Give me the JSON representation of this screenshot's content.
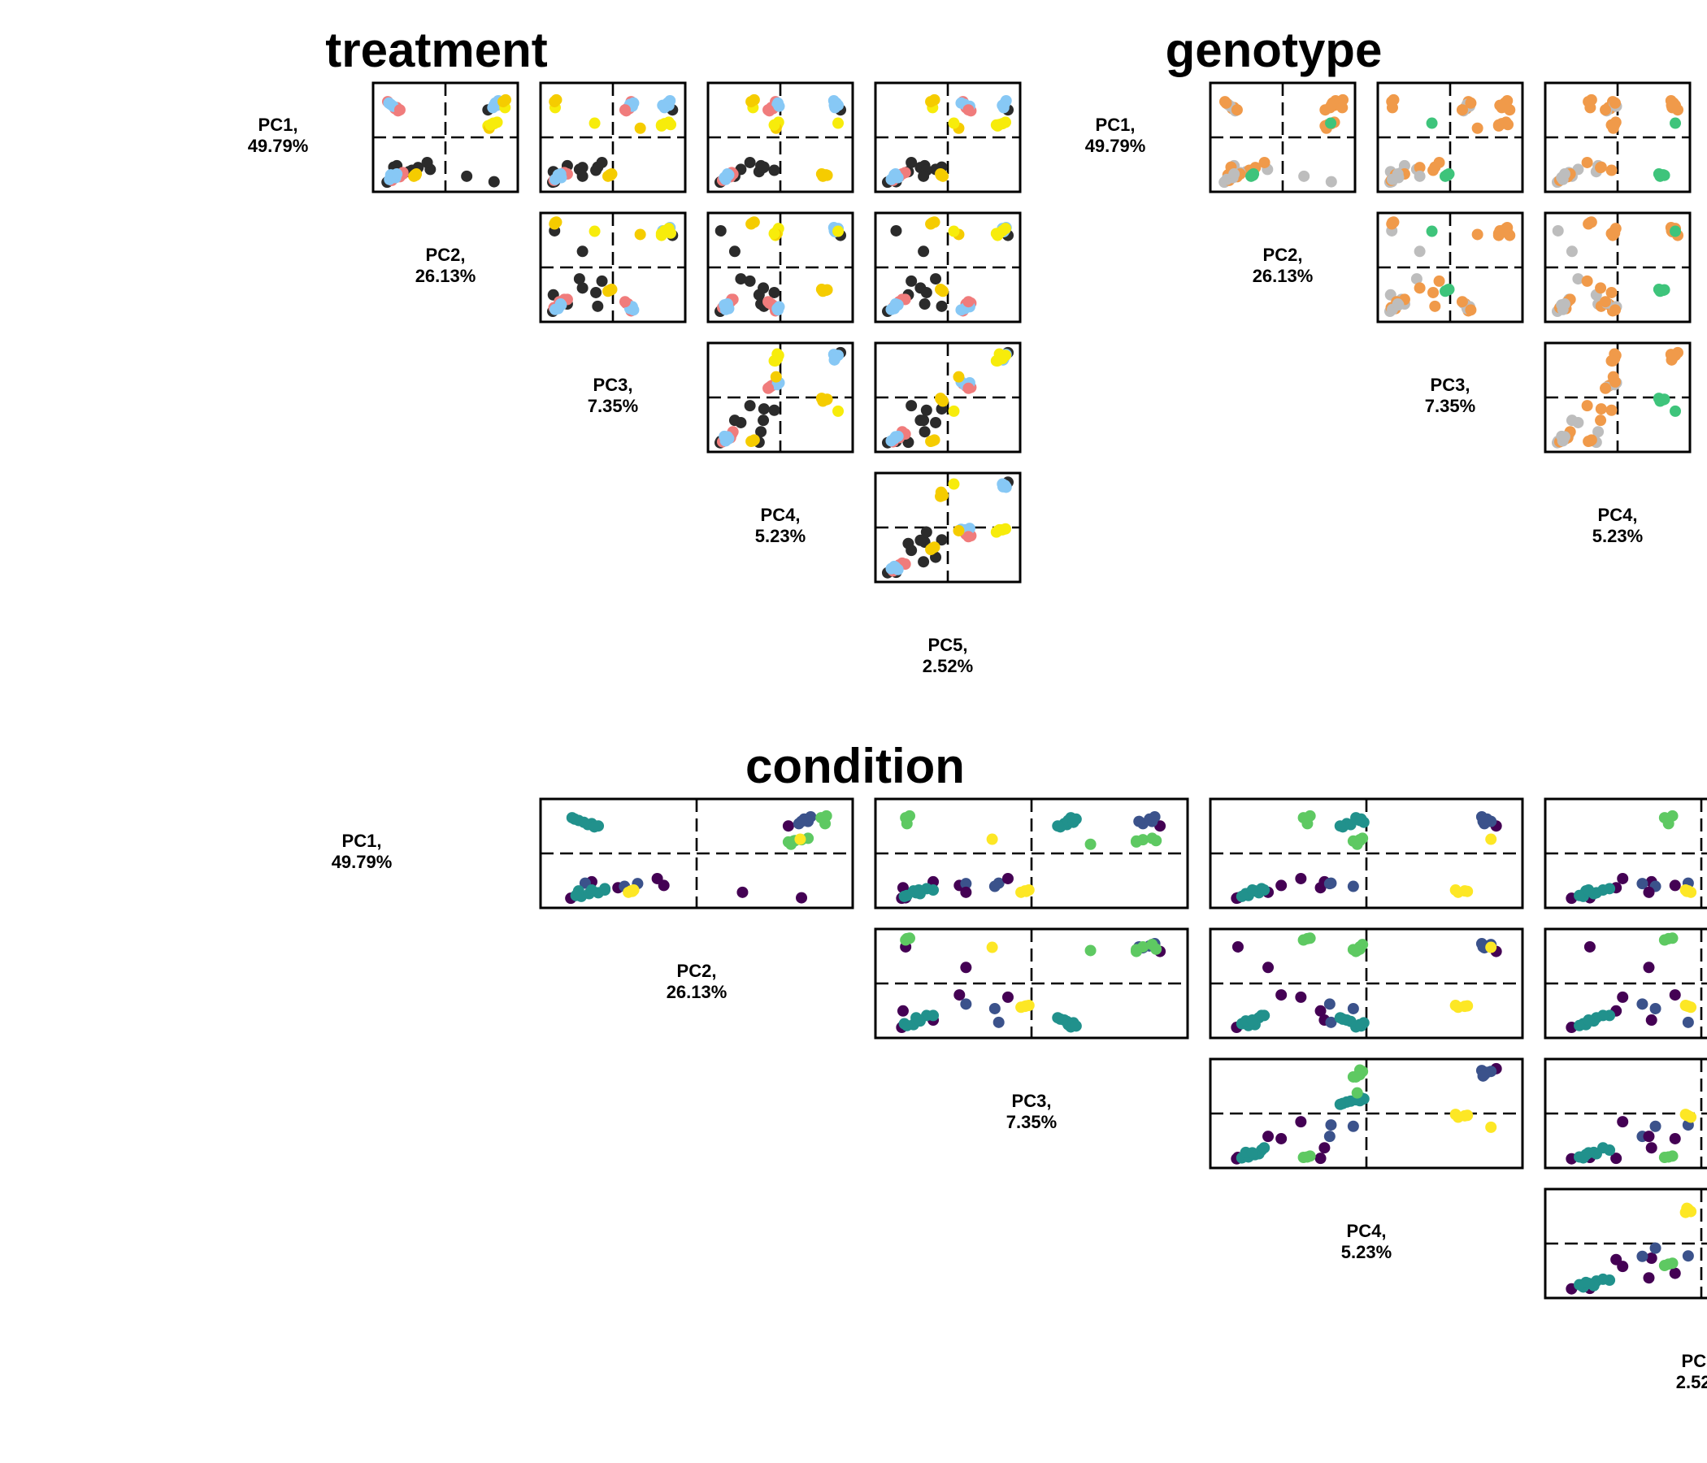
{
  "chart_data": {
    "type": "scatter",
    "pc_labels": [
      {
        "name": "PC1,",
        "variance": "49.79%"
      },
      {
        "name": "PC2,",
        "variance": "26.13%"
      },
      {
        "name": "PC3,",
        "variance": "7.35%"
      },
      {
        "name": "PC4,",
        "variance": "5.23%"
      },
      {
        "name": "PC5,",
        "variance": "2.52%"
      }
    ],
    "origin": [
      0,
      0
    ],
    "axis_ranges": [
      [
        -10,
        10
      ],
      [
        -10,
        10
      ],
      [
        -10,
        10
      ],
      [
        -10,
        10
      ],
      [
        -10,
        10
      ]
    ],
    "axis_ticks": "none",
    "grid": false,
    "panels": [
      {
        "title": "treatment",
        "color_map": "treatment"
      },
      {
        "title": "genotype",
        "color_map": "genotype"
      },
      {
        "title": "condition",
        "color_map": "condition"
      }
    ],
    "color_maps": {
      "treatment": [
        "#2b2b2b",
        "#f07c7c",
        "#87c8f5",
        "#f5cc00",
        "#f7ec0b"
      ],
      "genotype": [
        "#bdbdbd",
        "#f09a4a",
        "#f09a4a",
        "#3ec47b",
        "#f09a4a"
      ],
      "condition": [
        "#440154",
        "#3b528b",
        "#21918c",
        "#5ec962",
        "#fde725"
      ]
    },
    "samples": [
      {
        "pcs": [
          -7.5,
          -6.0,
          -9.8,
          -3.5,
          -6.5
        ],
        "treatment": 0,
        "genotype": 0,
        "condition": 0
      },
      {
        "pcs": [
          -6.2,
          -8.0,
          -7.5,
          -3.2,
          -3.8
        ],
        "treatment": 0,
        "genotype": 0,
        "condition": 0
      },
      {
        "pcs": [
          -7.0,
          -2.5,
          -5.5,
          -6.5,
          -2.0
        ],
        "treatment": 0,
        "genotype": 0,
        "condition": 0
      },
      {
        "pcs": [
          -9.8,
          -9.6,
          -9.9,
          -9.9,
          -9.9
        ],
        "treatment": 0,
        "genotype": 0,
        "condition": 0
      },
      {
        "pcs": [
          -6.6,
          -4.5,
          -5.0,
          -2.8,
          -4.5
        ],
        "treatment": 0,
        "genotype": 1,
        "condition": 1
      },
      {
        "pcs": [
          -6.5,
          -8.5,
          -2.5,
          -2.7,
          -1.0
        ],
        "treatment": 0,
        "genotype": 2,
        "condition": 1
      },
      {
        "pcs": [
          -7.2,
          -5.5,
          -2.8,
          -1.0,
          -3.5
        ],
        "treatment": 0,
        "genotype": 4,
        "condition": 1
      },
      {
        "pcs": [
          -5.5,
          -3.0,
          -1.8,
          -5.0,
          -6.0
        ],
        "treatment": 0,
        "genotype": 1,
        "condition": 0
      },
      {
        "pcs": [
          6.0,
          7.0,
          9.8,
          9.9,
          9.9
        ],
        "treatment": 0,
        "genotype": 4,
        "condition": 0
      },
      {
        "pcs": [
          -8.5,
          3.5,
          -5.0,
          -7.5,
          -4.0
        ],
        "treatment": 0,
        "genotype": 0,
        "condition": 0
      },
      {
        "pcs": [
          -9.7,
          8.0,
          -9.6,
          -9.8,
          -8.5
        ],
        "treatment": 0,
        "genotype": 0,
        "condition": 0
      },
      {
        "pcs": [
          -7.7,
          -7.0,
          -8.0,
          -8.0,
          -7.0
        ],
        "treatment": 1,
        "genotype": 0,
        "condition": 2
      },
      {
        "pcs": [
          -8.6,
          -7.5,
          -8.8,
          -8.2,
          -8.0
        ],
        "treatment": 1,
        "genotype": 1,
        "condition": 2
      },
      {
        "pcs": [
          -9.4,
          -8.8,
          -9.7,
          -9.5,
          -9.0
        ],
        "treatment": 1,
        "genotype": 1,
        "condition": 2
      },
      {
        "pcs": [
          -8.0,
          -7.0,
          -7.5,
          -7.8,
          -7.5
        ],
        "treatment": 1,
        "genotype": 1,
        "condition": 2
      },
      {
        "pcs": [
          -8.2,
          -9.0,
          -9.0,
          -8.5,
          -8.8
        ],
        "treatment": 2,
        "genotype": 1,
        "condition": 2
      },
      {
        "pcs": [
          -9.2,
          -9.2,
          -9.5,
          -9.0,
          -9.3
        ],
        "treatment": 2,
        "genotype": 0,
        "condition": 2
      },
      {
        "pcs": [
          -8.8,
          -8.2,
          -8.5,
          -9.2,
          -8.2
        ],
        "treatment": 2,
        "genotype": 0,
        "condition": 2
      },
      {
        "pcs": [
          7.0,
          8.5,
          9.2,
          9.5,
          9.0
        ],
        "treatment": 2,
        "genotype": 1,
        "condition": 1
      },
      {
        "pcs": [
          7.5,
          8.2,
          9.0,
          9.2,
          9.4
        ],
        "treatment": 2,
        "genotype": 1,
        "condition": 1
      },
      {
        "pcs": [
          8.0,
          8.7,
          9.4,
          8.8,
          9.6
        ],
        "treatment": 2,
        "genotype": 1,
        "condition": 1
      },
      {
        "pcs": [
          -8.0,
          -8.0,
          -8.6,
          -8.7,
          -8.6
        ],
        "treatment": 2,
        "genotype": 0,
        "condition": 2
      },
      {
        "pcs": [
          6.5,
          7.8,
          8.5,
          9.0,
          9.2
        ],
        "treatment": 2,
        "genotype": 1,
        "condition": 1
      },
      {
        "pcs": [
          7.0,
          8.0,
          8.2,
          8.9,
          9.1
        ],
        "treatment": 2,
        "genotype": 1,
        "condition": 1
      },
      {
        "pcs": [
          6.5,
          -8.0,
          2.5,
          -1.5,
          3.0
        ],
        "treatment": 1,
        "genotype": 1,
        "condition": 2
      },
      {
        "pcs": [
          6.3,
          -8.3,
          2.7,
          -1.2,
          3.3
        ],
        "treatment": 1,
        "genotype": 1,
        "condition": 2
      },
      {
        "pcs": [
          7.8,
          -9.5,
          3.0,
          -0.8,
          2.5
        ],
        "treatment": 1,
        "genotype": 1,
        "condition": 2
      },
      {
        "pcs": [
          5.8,
          -7.8,
          2.2,
          -1.8,
          3.8
        ],
        "treatment": 1,
        "genotype": 0,
        "condition": 2
      },
      {
        "pcs": [
          7.2,
          -9.0,
          2.8,
          -0.5,
          2.8
        ],
        "treatment": 2,
        "genotype": 0,
        "condition": 2
      },
      {
        "pcs": [
          6.8,
          -8.6,
          3.2,
          -0.2,
          3.6
        ],
        "treatment": 2,
        "genotype": 0,
        "condition": 2
      },
      {
        "pcs": [
          7.5,
          -9.3,
          3.4,
          -0.4,
          2.2
        ],
        "treatment": 2,
        "genotype": 1,
        "condition": 2
      },
      {
        "pcs": [
          6.0,
          -7.5,
          2.0,
          -2.0,
          3.4
        ],
        "treatment": 1,
        "genotype": 1,
        "condition": 2
      },
      {
        "pcs": [
          -8.2,
          -5.0,
          -0.5,
          7.5,
          -1.0
        ],
        "treatment": 3,
        "genotype": 3,
        "condition": 4
      },
      {
        "pcs": [
          -8.0,
          -4.8,
          -0.2,
          6.8,
          -1.2
        ],
        "treatment": 3,
        "genotype": 3,
        "condition": 4
      },
      {
        "pcs": [
          -8.5,
          -5.2,
          -0.8,
          7.0,
          -0.8
        ],
        "treatment": 3,
        "genotype": 3,
        "condition": 4
      },
      {
        "pcs": [
          -8.3,
          -4.9,
          -0.4,
          7.7,
          -1.1
        ],
        "treatment": 3,
        "genotype": 3,
        "condition": 4
      },
      {
        "pcs": [
          3.0,
          8.0,
          8.5,
          -0.5,
          9.0
        ],
        "treatment": 4,
        "genotype": 1,
        "condition": 3
      },
      {
        "pcs": [
          2.8,
          7.5,
          9.5,
          -0.5,
          8.5
        ],
        "treatment": 4,
        "genotype": 1,
        "condition": 3
      },
      {
        "pcs": [
          3.3,
          8.5,
          9.2,
          -0.3,
          9.5
        ],
        "treatment": 4,
        "genotype": 1,
        "condition": 3
      },
      {
        "pcs": [
          2.5,
          7.0,
          8.0,
          -0.8,
          8.2
        ],
        "treatment": 4,
        "genotype": 1,
        "condition": 3
      },
      {
        "pcs": [
          6.5,
          9.8,
          -9.5,
          -4.5,
          -2.5
        ],
        "treatment": 4,
        "genotype": 4,
        "condition": 3
      },
      {
        "pcs": [
          7.8,
          9.5,
          -9.6,
          -4.8,
          -2.8
        ],
        "treatment": 3,
        "genotype": 4,
        "condition": 3
      },
      {
        "pcs": [
          8.2,
          9.9,
          -9.3,
          -4.3,
          -2.2
        ],
        "treatment": 3,
        "genotype": 1,
        "condition": 3
      },
      {
        "pcs": [
          2.0,
          7.2,
          4.5,
          -0.7,
          1.8
        ],
        "treatment": 3,
        "genotype": 1,
        "condition": 3
      },
      {
        "pcs": [
          2.7,
          7.4,
          8.0,
          -1.0,
          8.0
        ],
        "treatment": 4,
        "genotype": 1,
        "condition": 3
      },
      {
        "pcs": [
          3.1,
          7.9,
          -3.0,
          9.5,
          1.0
        ],
        "treatment": 4,
        "genotype": 3,
        "condition": 4
      }
    ]
  }
}
